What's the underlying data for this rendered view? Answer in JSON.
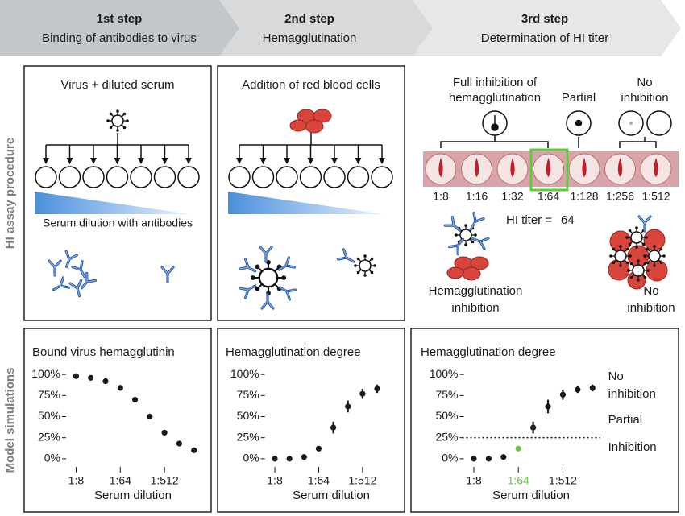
{
  "header": {
    "steps": [
      {
        "title": "1st step",
        "subtitle": "Binding of antibodies to virus"
      },
      {
        "title": "2nd step",
        "subtitle": "Hemagglutination"
      },
      {
        "title": "3rd step",
        "subtitle": "Determination of HI titer"
      }
    ]
  },
  "row_labels": [
    "HI assay procedure",
    "Model simulations"
  ],
  "step1": {
    "title": "Virus + diluted serum",
    "gradient_label": "Serum dilution with antibodies"
  },
  "step2": {
    "title": "Addition of red blood cells"
  },
  "step3": {
    "full_inhibition": [
      "Full inhibition of",
      "hemagglutination"
    ],
    "partial": "Partial",
    "no_inhibition": [
      "No",
      "inhibition"
    ],
    "dilutions": [
      "1:8",
      "1:16",
      "1:32",
      "1:64",
      "1:128",
      "1:256",
      "1:512"
    ],
    "titer_label": "HI titer =",
    "titer_value": 64,
    "left_label": [
      "Hemagglutination",
      "inhibition"
    ],
    "right_label": [
      "No",
      "inhibition"
    ]
  },
  "chart_data": [
    {
      "type": "scatter",
      "title": "Bound virus hemagglutinin",
      "x_label": "Serum dilution",
      "x": [
        8,
        16,
        32,
        64,
        128,
        256,
        512,
        1024,
        2048
      ],
      "values": [
        98,
        96,
        92,
        84,
        70,
        50,
        31,
        18,
        10
      ],
      "color": "#1a1a1a",
      "xscale": "log",
      "xlim": [
        5,
        2700
      ],
      "xticks": [
        {
          "value": 8,
          "label": "1:8"
        },
        {
          "value": 64,
          "label": "1:64"
        },
        {
          "value": 512,
          "label": "1:512"
        }
      ],
      "ylim": [
        -3,
        103
      ],
      "yticks": [
        {
          "value": 0,
          "label": "0%"
        },
        {
          "value": 25,
          "label": "25%"
        },
        {
          "value": 50,
          "label": "50%"
        },
        {
          "value": 75,
          "label": "75%"
        },
        {
          "value": 100,
          "label": "100%"
        }
      ]
    },
    {
      "type": "scatter",
      "title": "Hemagglutination degree",
      "x_label": "Serum dilution",
      "x": [
        8,
        16,
        32,
        64,
        128,
        256,
        512,
        1024
      ],
      "values": [
        0,
        0,
        2,
        12,
        37,
        62,
        77,
        83
      ],
      "errors": [
        0,
        0,
        1,
        3,
        7,
        7,
        6,
        5
      ],
      "color": "#1a1a1a",
      "xscale": "log",
      "xlim": [
        5,
        2700
      ],
      "xticks": [
        {
          "value": 8,
          "label": "1:8"
        },
        {
          "value": 64,
          "label": "1:64"
        },
        {
          "value": 512,
          "label": "1:512"
        }
      ],
      "ylim": [
        -3,
        103
      ],
      "yticks": [
        {
          "value": 0,
          "label": "0%"
        },
        {
          "value": 25,
          "label": "25%"
        },
        {
          "value": 50,
          "label": "50%"
        },
        {
          "value": 75,
          "label": "75%"
        },
        {
          "value": 100,
          "label": "100%"
        }
      ]
    },
    {
      "type": "scatter",
      "title": "Hemagglutination degree",
      "x_label": "Serum dilution",
      "x": [
        8,
        16,
        32,
        64,
        128,
        256,
        512,
        1024,
        2048
      ],
      "values": [
        0,
        0,
        2,
        12,
        37,
        62,
        76,
        82,
        84
      ],
      "errors": [
        0,
        0,
        1,
        3,
        7,
        8,
        6,
        4,
        4
      ],
      "color": "#1a1a1a",
      "xscale": "log",
      "xlim": [
        5,
        2700
      ],
      "xticks": [
        {
          "value": 8,
          "label": "1:8"
        },
        {
          "value": 64,
          "label": "1:64"
        },
        {
          "value": 512,
          "label": "1:512"
        }
      ],
      "ylim": [
        -3,
        103
      ],
      "yticks": [
        {
          "value": 0,
          "label": "0%"
        },
        {
          "value": 25,
          "label": "25%"
        },
        {
          "value": 50,
          "label": "50%"
        },
        {
          "value": 75,
          "label": "75%"
        },
        {
          "value": 100,
          "label": "100%"
        }
      ],
      "threshold": 25,
      "highlight": {
        "x": 64,
        "color": "#6cc24a"
      },
      "zone_labels": [
        [
          "No",
          "inhibition"
        ],
        [
          "Partial"
        ],
        [
          "Inhibition"
        ]
      ]
    }
  ]
}
